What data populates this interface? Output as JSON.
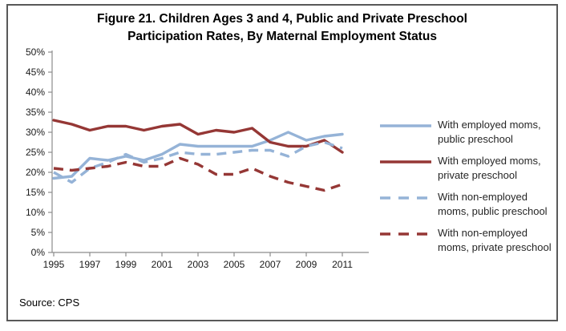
{
  "figure": {
    "title_line1": "Figure 21. Children Ages 3 and 4, Public and Private Preschool",
    "title_line2": "Participation Rates, By Maternal Employment Status",
    "source": "Source: CPS"
  },
  "chart_data": {
    "type": "line",
    "title": "Figure 21. Children Ages 3 and 4, Public and Private Preschool Participation Rates, By Maternal Employment Status",
    "x": [
      1995,
      1996,
      1997,
      1998,
      1999,
      2000,
      2001,
      2002,
      2003,
      2004,
      2005,
      2006,
      2007,
      2008,
      2009,
      2010,
      2011
    ],
    "x_tick_labels": [
      "1995",
      "1997",
      "1999",
      "2001",
      "2003",
      "2005",
      "2007",
      "2009",
      "2011"
    ],
    "ylabel": "",
    "xlabel": "",
    "ylim": [
      0,
      50
    ],
    "y_tick_step": 5,
    "y_tick_format": "percent",
    "grid": false,
    "legend_position": "right",
    "axis_color": "#8C8C8C",
    "series": [
      {
        "name": "With employed moms, public preschool",
        "color": "#95B3D7",
        "line_style": "solid",
        "values": [
          18.5,
          19,
          23.5,
          23,
          24,
          23,
          24.5,
          27,
          26.5,
          26.5,
          26.5,
          26.5,
          28,
          30,
          28,
          29,
          29.5
        ]
      },
      {
        "name": "With employed moms, private preschool",
        "color": "#953735",
        "line_style": "solid",
        "values": [
          33,
          32,
          30.5,
          31.5,
          31.5,
          30.5,
          31.5,
          32,
          29.5,
          30.5,
          30,
          31,
          27.5,
          26.5,
          26.5,
          28,
          25
        ]
      },
      {
        "name": "With non-employed moms, public preschool",
        "color": "#95B3D7",
        "line_style": "dashed",
        "values": [
          20,
          17.5,
          21,
          22.5,
          24.5,
          22.5,
          23.5,
          25,
          24.5,
          24.5,
          25,
          25.5,
          25.5,
          24,
          26.5,
          27.5,
          26
        ]
      },
      {
        "name": "With non-employed moms, private preschool",
        "color": "#953735",
        "line_style": "dashed",
        "values": [
          21,
          20.5,
          21,
          21.5,
          22.5,
          21.5,
          21.5,
          23.5,
          22,
          19.5,
          19.5,
          21,
          19,
          17.5,
          16.5,
          15.5,
          17
        ]
      }
    ]
  }
}
